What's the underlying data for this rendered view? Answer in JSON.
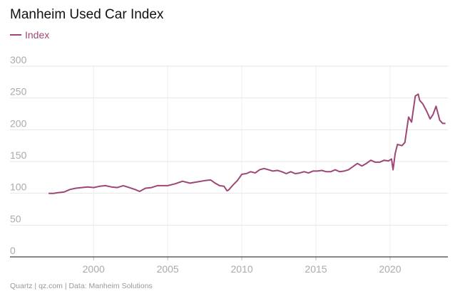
{
  "chart_data": {
    "type": "line",
    "title": "Manheim Used Car Index",
    "xlabel": "",
    "ylabel": "",
    "ylim": [
      0,
      300
    ],
    "xlim": [
      1995.9,
      2023.9
    ],
    "yticks": [
      "0",
      "50",
      "100",
      "150",
      "200",
      "250",
      "300"
    ],
    "xticks": [
      "2000",
      "2005",
      "2010",
      "2015",
      "2020"
    ],
    "grid": true,
    "legend": "top-left",
    "series": [
      {
        "name": "Index",
        "color": "#9e4776",
        "x": [
          1997.0,
          1997.3,
          1997.6,
          1998.0,
          1998.4,
          1998.8,
          1999.2,
          1999.6,
          2000.0,
          2000.4,
          2000.8,
          2001.2,
          2001.6,
          2002.0,
          2002.4,
          2002.8,
          2003.1,
          2003.5,
          2003.9,
          2004.3,
          2004.7,
          2005.0,
          2005.5,
          2006.0,
          2006.5,
          2007.0,
          2007.5,
          2007.9,
          2008.2,
          2008.5,
          2008.8,
          2009.0,
          2009.1,
          2009.4,
          2009.7,
          2010.0,
          2010.3,
          2010.6,
          2010.9,
          2011.2,
          2011.5,
          2011.8,
          2012.1,
          2012.4,
          2012.7,
          2013.0,
          2013.3,
          2013.6,
          2013.9,
          2014.2,
          2014.5,
          2014.8,
          2015.1,
          2015.4,
          2015.7,
          2016.0,
          2016.3,
          2016.6,
          2016.9,
          2017.2,
          2017.5,
          2017.8,
          2018.1,
          2018.4,
          2018.7,
          2019.0,
          2019.3,
          2019.6,
          2019.9,
          2020.1,
          2020.2,
          2020.35,
          2020.5,
          2020.8,
          2021.0,
          2021.25,
          2021.45,
          2021.7,
          2021.9,
          2022.0,
          2022.2,
          2022.45,
          2022.7,
          2022.9,
          2023.1,
          2023.35,
          2023.55,
          2023.7
        ],
        "values": [
          100,
          100,
          101,
          102,
          106,
          108,
          109,
          110,
          109,
          111,
          112,
          110,
          109,
          112,
          109,
          106,
          103,
          108,
          109,
          112,
          112,
          112,
          115,
          119,
          116,
          118,
          120,
          121,
          116,
          112,
          111,
          104,
          105,
          113,
          120,
          130,
          131,
          134,
          132,
          137,
          139,
          137,
          135,
          136,
          134,
          131,
          134,
          131,
          132,
          134,
          132,
          135,
          135,
          136,
          134,
          134,
          137,
          134,
          135,
          137,
          142,
          147,
          143,
          147,
          152,
          149,
          149,
          152,
          151,
          154,
          137,
          163,
          177,
          175,
          180,
          220,
          212,
          253,
          256,
          246,
          241,
          230,
          217,
          224,
          237,
          215,
          210,
          210
        ]
      }
    ]
  },
  "source_text": "Quartz | qz.com | Data: Manheim Solutions"
}
